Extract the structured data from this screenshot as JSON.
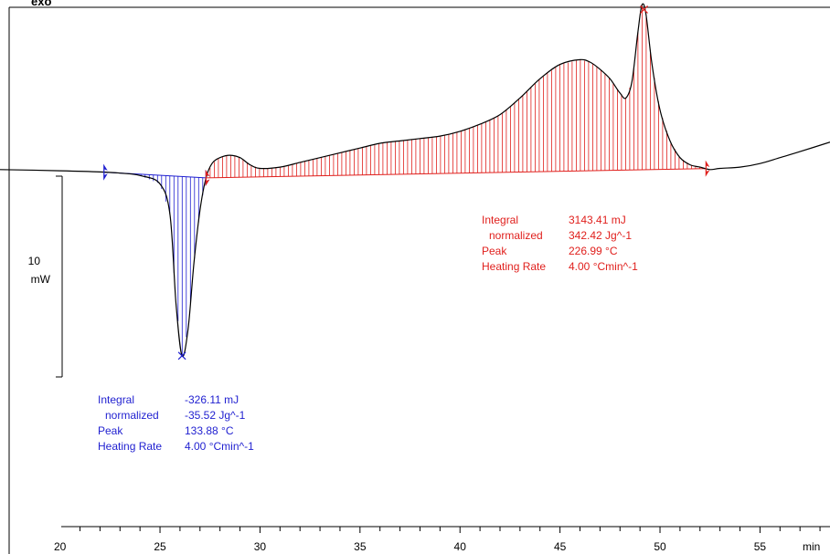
{
  "window": {
    "top_label": "exo"
  },
  "scale_bar": {
    "value": "10",
    "unit": "mW"
  },
  "chart_data": {
    "type": "line",
    "title": "",
    "xlabel": "min",
    "ylabel": "",
    "xlim": [
      17,
      58.5
    ],
    "ylim": [
      -16,
      7.2
    ],
    "x_ticks": [
      20,
      25,
      30,
      35,
      40,
      45,
      50,
      55
    ],
    "x_tick_labels": [
      "20",
      "25",
      "30",
      "35",
      "40",
      "45",
      "50",
      "55"
    ],
    "grid": false,
    "series": [
      {
        "name": "",
        "x": [
          17,
          20,
          22,
          23,
          24,
          25,
          25.5,
          25.8,
          26.1,
          26.4,
          26.7,
          27.0,
          27.3,
          27.6,
          28,
          28.5,
          29,
          29.5,
          30,
          31,
          32,
          33,
          34,
          35,
          36,
          37,
          38,
          39,
          40,
          41,
          42,
          43,
          44,
          45,
          46,
          46.5,
          47,
          47.5,
          48,
          48.3,
          48.6,
          48.9,
          49.1,
          49.3,
          49.6,
          50,
          50.5,
          51,
          51.5,
          52,
          52.5,
          53,
          54,
          55,
          56,
          57,
          58.5
        ],
        "y": [
          0.1,
          0.05,
          0,
          -0.05,
          -0.15,
          -0.5,
          -1.8,
          -5.5,
          -7.7,
          -6.6,
          -3.8,
          -1.6,
          -0.25,
          0.35,
          0.6,
          0.7,
          0.6,
          0.3,
          0.15,
          0.2,
          0.4,
          0.6,
          0.8,
          1.0,
          1.2,
          1.3,
          1.4,
          1.5,
          1.7,
          2.0,
          2.4,
          3.1,
          3.9,
          4.5,
          4.7,
          4.6,
          4.3,
          3.9,
          3.3,
          3.1,
          3.8,
          5.9,
          7.0,
          6.6,
          4.5,
          2.6,
          1.3,
          0.6,
          0.3,
          0.2,
          0.1,
          0.15,
          0.2,
          0.35,
          0.6,
          0.85,
          1.25
        ]
      }
    ],
    "peaks": [
      {
        "start": 22.2,
        "end": 27.3,
        "peak_time": 26.1,
        "color": "#1f1fd0",
        "integral_label": "Integral",
        "integral_value": "-326.11 mJ",
        "normalized_label": "normalized",
        "normalized_value": "-35.52 Jg^-1",
        "peak_label": "Peak",
        "peak_value": "133.88 °C",
        "rate_label": "Heating Rate",
        "rate_value": "4.00 °Cmin^-1"
      },
      {
        "start": 27.3,
        "end": 52.3,
        "peak_time": 49.2,
        "color": "#e0201d",
        "integral_label": "Integral",
        "integral_value": "3143.41 mJ",
        "normalized_label": "normalized",
        "normalized_value": "342.42 Jg^-1",
        "peak_label": "Peak",
        "peak_value": "226.99 °C",
        "rate_label": "Heating Rate",
        "rate_value": "4.00 °Cmin^-1"
      }
    ]
  }
}
